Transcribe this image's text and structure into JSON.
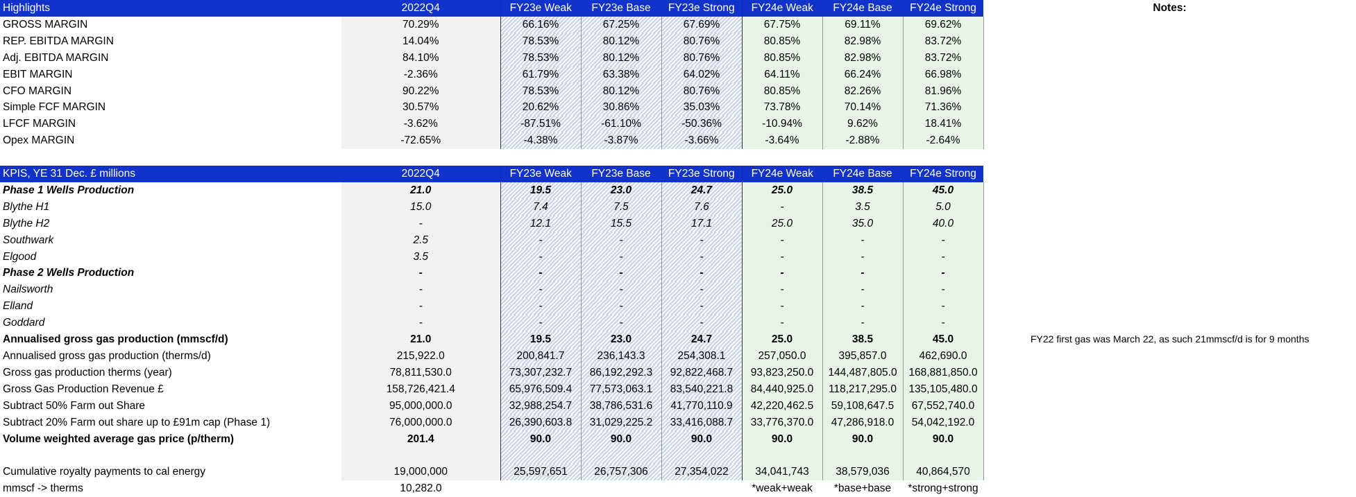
{
  "highlights": {
    "headers": [
      "Highlights",
      "2022Q4",
      "FY23e Weak",
      "FY23e Base",
      "FY23e Strong",
      "FY24e Weak",
      "FY24e Base",
      "FY24e Strong"
    ],
    "notes_label": "Notes:",
    "rows": [
      {
        "label": "GROSS MARGIN",
        "values": [
          "70.29%",
          "66.16%",
          "67.25%",
          "67.69%",
          "67.75%",
          "69.11%",
          "69.62%"
        ]
      },
      {
        "label": "REP. EBITDA MARGIN",
        "values": [
          "14.04%",
          "78.53%",
          "80.12%",
          "80.76%",
          "80.85%",
          "82.98%",
          "83.72%"
        ]
      },
      {
        "label": "Adj. EBITDA MARGIN",
        "values": [
          "84.10%",
          "78.53%",
          "80.12%",
          "80.76%",
          "80.85%",
          "82.98%",
          "83.72%"
        ]
      },
      {
        "label": "EBIT MARGIN",
        "values": [
          "-2.36%",
          "61.79%",
          "63.38%",
          "64.02%",
          "64.11%",
          "66.24%",
          "66.98%"
        ]
      },
      {
        "label": "CFO MARGIN",
        "values": [
          "90.22%",
          "78.53%",
          "80.12%",
          "80.76%",
          "80.85%",
          "82.26%",
          "81.96%"
        ]
      },
      {
        "label": "Simple FCF MARGIN",
        "values": [
          "30.57%",
          "20.62%",
          "30.86%",
          "35.03%",
          "73.78%",
          "70.14%",
          "71.36%"
        ]
      },
      {
        "label": "LFCF MARGIN",
        "values": [
          "-3.62%",
          "-87.51%",
          "-61.10%",
          "-50.36%",
          "-10.94%",
          "9.62%",
          "18.41%"
        ]
      },
      {
        "label": "Opex MARGIN",
        "values": [
          "-72.65%",
          "-4.38%",
          "-3.87%",
          "-3.66%",
          "-3.64%",
          "-2.88%",
          "-2.64%"
        ]
      }
    ]
  },
  "kpis": {
    "headers": [
      "KPIS, YE 31 Dec. £ millions",
      "2022Q4",
      "FY23e Weak",
      "FY23e Base",
      "FY23e Strong",
      "FY24e Weak",
      "FY24e Base",
      "FY24e Strong"
    ],
    "rows": [
      {
        "label": "Phase 1 Wells Production",
        "style": "bi",
        "values": [
          "21.0",
          "19.5",
          "23.0",
          "24.7",
          "25.0",
          "38.5",
          "45.0"
        ],
        "note": ""
      },
      {
        "label": "Blythe H1",
        "style": "i",
        "values": [
          "15.0",
          "7.4",
          "7.5",
          "7.6",
          "-",
          "3.5",
          "5.0"
        ],
        "note": ""
      },
      {
        "label": "Blythe H2",
        "style": "i",
        "values": [
          "-",
          "12.1",
          "15.5",
          "17.1",
          "25.0",
          "35.0",
          "40.0"
        ],
        "note": ""
      },
      {
        "label": "Southwark",
        "style": "i",
        "values": [
          "2.5",
          "-",
          "-",
          "-",
          "-",
          "-",
          "-"
        ],
        "note": ""
      },
      {
        "label": "Elgood",
        "style": "i",
        "values": [
          "3.5",
          "-",
          "-",
          "-",
          "-",
          "-",
          "-"
        ],
        "note": ""
      },
      {
        "label": "Phase 2 Wells Production",
        "style": "bi",
        "values": [
          "-",
          "-",
          "-",
          "-",
          "-",
          "-",
          "-"
        ],
        "note": ""
      },
      {
        "label": "Nailsworth",
        "style": "i",
        "values": [
          "-",
          "-",
          "-",
          "-",
          "-",
          "-",
          "-"
        ],
        "note": ""
      },
      {
        "label": "Elland",
        "style": "i",
        "values": [
          "-",
          "-",
          "-",
          "-",
          "-",
          "-",
          "-"
        ],
        "note": ""
      },
      {
        "label": "Goddard",
        "style": "i",
        "values": [
          "-",
          "-",
          "-",
          "-",
          "-",
          "-",
          "-"
        ],
        "note": ""
      },
      {
        "label": "Annualised gross gas production (mmscf/d)",
        "style": "b",
        "values": [
          "21.0",
          "19.5",
          "23.0",
          "24.7",
          "25.0",
          "38.5",
          "45.0"
        ],
        "note": "FY22 first gas was March 22, as such 21mmscf/d is for 9 months"
      },
      {
        "label": "Annualised gross gas production (therms/d)",
        "style": "",
        "values": [
          "215,922.0",
          "200,841.7",
          "236,143.3",
          "254,308.1",
          "257,050.0",
          "395,857.0",
          "462,690.0"
        ],
        "note": ""
      },
      {
        "label": "Gross gas production therms (year)",
        "style": "",
        "values": [
          "78,811,530.0",
          "73,307,232.7",
          "86,192,292.3",
          "92,822,468.7",
          "93,823,250.0",
          "144,487,805.0",
          "168,881,850.0"
        ],
        "note": ""
      },
      {
        "label": "Gross Gas Production Revenue £",
        "style": "",
        "values": [
          "158,726,421.4",
          "65,976,509.4",
          "77,573,063.1",
          "83,540,221.8",
          "84,440,925.0",
          "118,217,295.0",
          "135,105,480.0"
        ],
        "note": ""
      },
      {
        "label": "Subtract 50% Farm out Share",
        "style": "",
        "values": [
          "95,000,000.0",
          "32,988,254.7",
          "38,786,531.6",
          "41,770,110.9",
          "42,220,462.5",
          "59,108,647.5",
          "67,552,740.0"
        ],
        "note": ""
      },
      {
        "label": "Subtract 20% Farm out share up to £91m cap (Phase 1)",
        "style": "",
        "values": [
          "76,000,000.0",
          "26,390,603.8",
          "31,029,225.2",
          "33,416,088.7",
          "33,776,370.0",
          "47,286,918.0",
          "54,042,192.0"
        ],
        "note": ""
      },
      {
        "label": "Volume weighted average gas price (p/therm)",
        "style": "b",
        "values": [
          "201.4",
          "90.0",
          "90.0",
          "90.0",
          "90.0",
          "90.0",
          "90.0"
        ],
        "note": ""
      }
    ],
    "royalty": {
      "label": "Cumulative royalty payments to cal energy",
      "values": [
        "19,000,000",
        "25,597,651",
        "26,757,306",
        "27,354,022",
        "34,041,743",
        "38,579,036",
        "40,864,570"
      ]
    },
    "conversion": {
      "label": "mmscf -> therms",
      "value": "10,282.0",
      "scenario_notes": [
        "*weak+weak",
        "*base+base",
        "*strong+strong"
      ]
    }
  }
}
